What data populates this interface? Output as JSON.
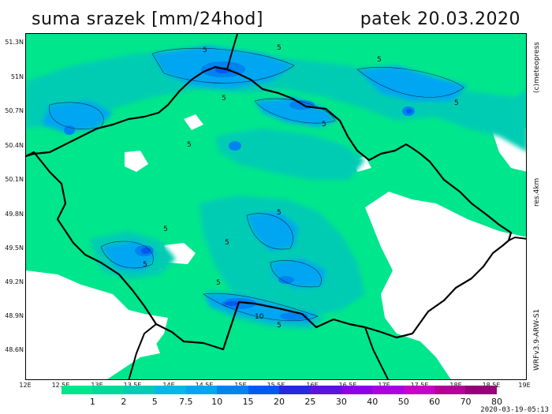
{
  "title": {
    "left": "suma srazek [mm/24hod]",
    "right": "patek 20.03.2020"
  },
  "y_axis_labels": [
    "51.3N",
    "51N",
    "50.7N",
    "50.4N",
    "50.1N",
    "49.8N",
    "49.5N",
    "49.2N",
    "48.9N",
    "48.6N"
  ],
  "x_axis_labels": [
    "12E",
    "12.5E",
    "13E",
    "13.5E",
    "14E",
    "14.5E",
    "15E",
    "15.5E",
    "16E",
    "16.5E",
    "17E",
    "17.5E",
    "18E",
    "18.5E",
    "19E"
  ],
  "side_labels": {
    "copyright": "(c)meteopress",
    "resolution": "res.4km",
    "model": "WRFv3.9-ARW-S1"
  },
  "contour_labels": [
    "5",
    "5",
    "5",
    "5",
    "5",
    "5",
    "5",
    "5",
    "5",
    "5",
    "10",
    "5",
    "5",
    "5"
  ],
  "colorbar": {
    "labels": [
      "1",
      "2",
      "5",
      "7.5",
      "10",
      "15",
      "20",
      "25",
      "30",
      "40",
      "50",
      "60",
      "70",
      "80"
    ],
    "colors": [
      "#00e68c",
      "#00d99a",
      "#00ccb4",
      "#00b9e6",
      "#00a6f2",
      "#0082f0",
      "#005af0",
      "#2828dc",
      "#5a14dc",
      "#8c00e6",
      "#aa00e6",
      "#c800c8",
      "#b40096",
      "#960078"
    ]
  },
  "colors": {
    "no_precip": "#ffffff",
    "light": "#00e68c",
    "mid": "#00ccb4",
    "heavy": "#0082f0",
    "border": "#000000"
  },
  "timestamp": "2020-03-19-05:13"
}
